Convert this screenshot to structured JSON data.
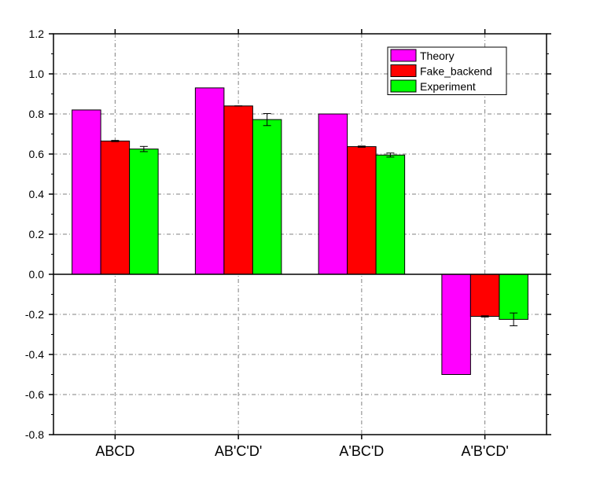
{
  "chart_data": {
    "type": "bar",
    "categories": [
      "ABCD",
      "AB'C'D'",
      "A'BC'D",
      "A'B'CD'"
    ],
    "series": [
      {
        "name": "Theory",
        "color": "#ff00ff",
        "values": [
          0.82,
          0.93,
          0.8,
          -0.5
        ],
        "errors": [
          null,
          null,
          null,
          null
        ]
      },
      {
        "name": "Fake_backend",
        "color": "#ff0000",
        "values": [
          0.665,
          0.84,
          0.637,
          -0.21
        ],
        "errors": [
          0.003,
          0.0,
          0.003,
          0.003
        ]
      },
      {
        "name": "Experiment",
        "color": "#00ff00",
        "values": [
          0.625,
          0.772,
          0.595,
          -0.225
        ],
        "errors": [
          0.013,
          0.03,
          0.01,
          0.032
        ]
      }
    ],
    "ylim": [
      -0.8,
      1.2
    ],
    "yticks": [
      "1.2",
      "1.0",
      "0.8",
      "0.6",
      "0.4",
      "0.2",
      "0.0",
      "-0.2",
      "-0.4",
      "-0.6",
      "-0.8"
    ],
    "ytick_values": [
      1.2,
      1.0,
      0.8,
      0.6,
      0.4,
      0.2,
      0.0,
      -0.2,
      -0.4,
      -0.6,
      -0.8
    ],
    "grid": true,
    "legend_position": "top-right",
    "title": "",
    "xlabel": "",
    "ylabel": ""
  }
}
